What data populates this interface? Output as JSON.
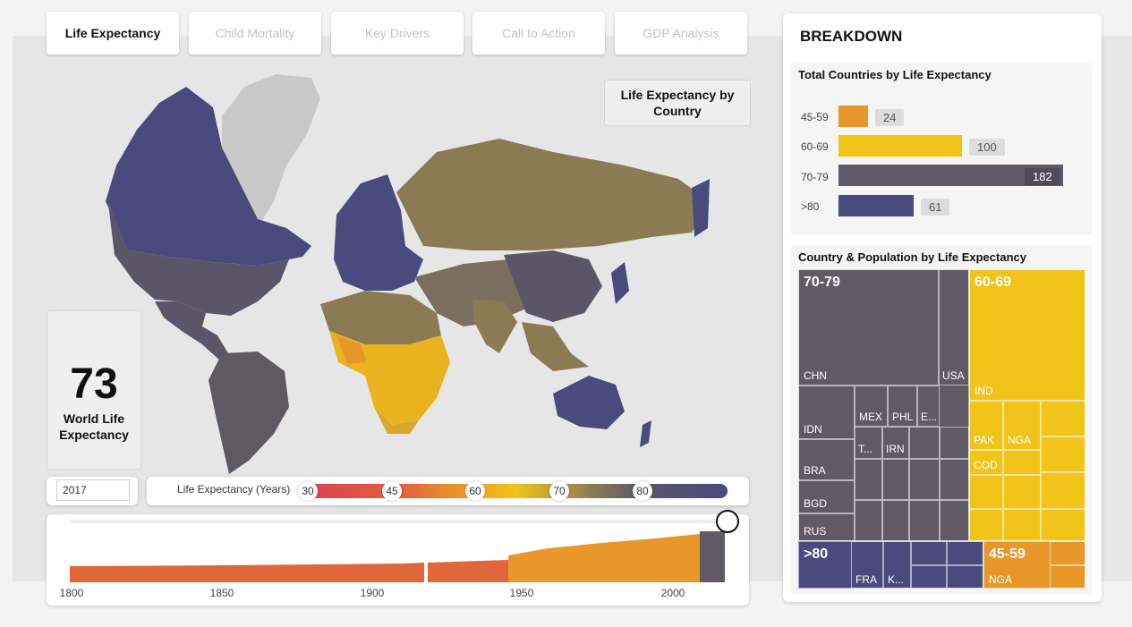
{
  "tabs": [
    {
      "label": "Life Expectancy",
      "active": true
    },
    {
      "label": "Child Mortality",
      "active": false
    },
    {
      "label": "Key Drivers",
      "active": false
    },
    {
      "label": "Call to Action",
      "active": false
    },
    {
      "label": "GDP Analysis",
      "active": false
    }
  ],
  "map": {
    "title": "Life Expectancy by Country"
  },
  "kpi": {
    "value": "73",
    "label": "World Life Expectancy"
  },
  "year_slicer": {
    "value": "2017"
  },
  "legend": {
    "title": "Life Expectancy (Years)",
    "stops": [
      "30",
      "45",
      "60",
      "70",
      "80"
    ]
  },
  "timeline": {
    "ticks": [
      "1800",
      "1850",
      "1900",
      "1950",
      "2000"
    ],
    "colors": {
      "early": "#e0673a",
      "mid": "#e8972a",
      "late": "#605a66"
    }
  },
  "breakdown": {
    "title": "BREAKDOWN",
    "bar_panel": {
      "title": "Total Countries by Life Expectancy",
      "bars": [
        {
          "label": "45-59",
          "value": 24,
          "color": "#e8972a"
        },
        {
          "label": "60-69",
          "value": 100,
          "color": "#f0c419"
        },
        {
          "label": "70-79",
          "value": 182,
          "color": "#605a66"
        },
        {
          "label": ">80",
          "value": 61,
          "color": "#4a4a7e"
        }
      ]
    },
    "treemap_panel": {
      "title": "Country & Population by Life Expectancy",
      "groups": [
        {
          "label": "70-79",
          "color": "#605a66"
        },
        {
          "label": "60-69",
          "color": "#f0c419"
        },
        {
          "label": ">80",
          "color": "#4a4a7e"
        },
        {
          "label": "45-59",
          "color": "#e8972a"
        }
      ],
      "countries": {
        "chn": "CHN",
        "usa": "USA",
        "idn": "IDN",
        "mex": "MEX",
        "phl": "PHL",
        "e": "E...",
        "bra": "BRA",
        "t": "T...",
        "irn": "IRN",
        "bgd": "BGD",
        "rus": "RUS",
        "ind": "IND",
        "pak": "PAK",
        "nga_6069": "NGA",
        "cod": "COD",
        "fra": "FRA",
        "k": "K...",
        "nga_4559": "NGA"
      }
    }
  }
}
